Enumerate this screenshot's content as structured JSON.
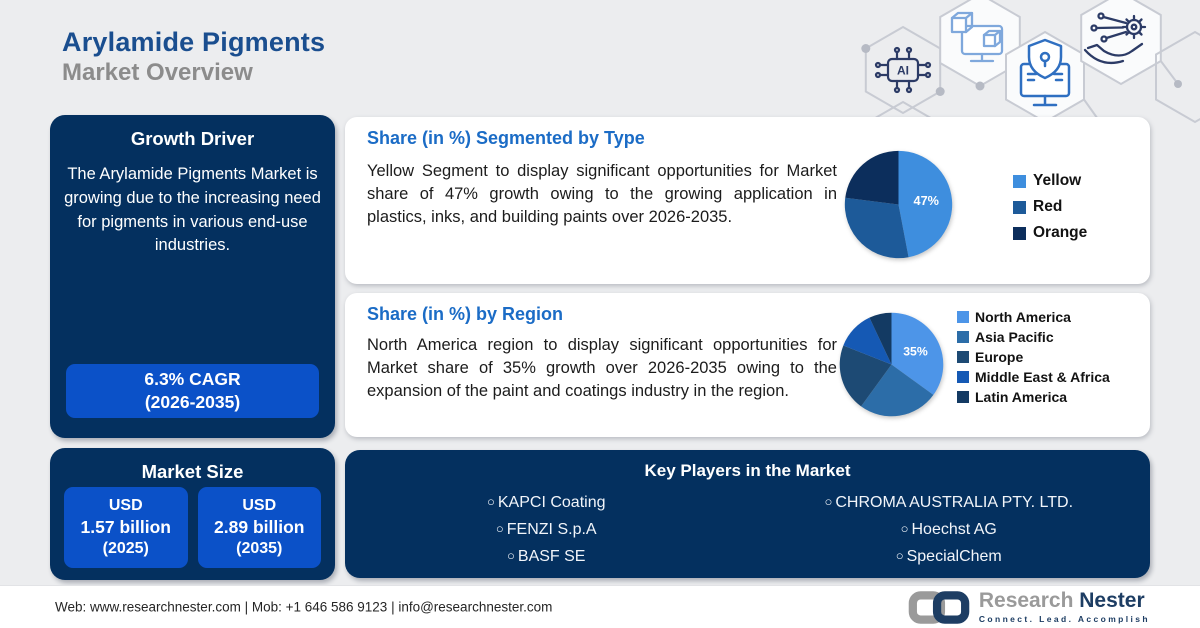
{
  "header": {
    "title": "Arylamide Pigments",
    "subtitle": "Market Overview"
  },
  "growth_driver": {
    "title": "Growth Driver",
    "text": "The Arylamide Pigments Market is growing due to the increasing need for pigments in various end-use industries.",
    "cagr_line1": "6.3% CAGR",
    "cagr_line2": "(2026-2035)"
  },
  "market_size": {
    "title": "Market Size",
    "boxes": [
      {
        "line1": "USD",
        "line2": "1.57 billion",
        "line3": "(2025)"
      },
      {
        "line1": "USD",
        "line2": "2.89 billion",
        "line3": "(2035)"
      }
    ]
  },
  "type_card": {
    "title": "Share (in %) Segmented by Type",
    "body": "Yellow Segment to display significant opportunities for Market share of 47% growth owing to the growing application in plastics, inks, and building paints over 2026-2035."
  },
  "region_card": {
    "title": "Share (in %) by Region",
    "body": "North America region to display significant opportunities for Market share of 35% growth over 2026-2035 owing to the expansion of the paint and coatings industry in the region."
  },
  "key_players": {
    "title": "Key Players in the Market",
    "column1": [
      "KAPCI Coating",
      "FENZI S.p.A",
      "BASF SE"
    ],
    "column2": [
      "CHROMA AUSTRALIA PTY. LTD.",
      "Hoechst AG",
      "SpecialChem"
    ]
  },
  "footer": {
    "contact": "Web: www.researchnester.com | Mob: +1 646 586 9123 | info@researchnester.com",
    "logo_word1": "Research",
    "logo_word2": "Nester",
    "logo_tagline": "Connect. Lead. Accomplish"
  },
  "icons": {
    "ai_chip_label": "AI"
  },
  "colors": {
    "panel_navy": "#04305F",
    "accent_blue": "#0B51C8",
    "card_title_blue": "#1B6CC6",
    "title_navy": "#1A4E8F",
    "subtitle_gray": "#8C8C8C",
    "background": "#ECEDEF"
  },
  "chart_data": [
    {
      "type": "pie",
      "title": "Share (in %) Segmented by Type",
      "labels": [
        "Yellow",
        "Red",
        "Orange"
      ],
      "values": [
        47,
        30,
        23
      ],
      "colors": [
        "#3E8EDE",
        "#1D5A99",
        "#0C2E5C"
      ],
      "data_label": "47%",
      "data_label_slice": 0,
      "legend_position": "right",
      "start_angle_deg_from_top": 0,
      "direction": "clockwise"
    },
    {
      "type": "pie",
      "title": "Share (in %) by Region",
      "labels": [
        "North America",
        "Asia Pacific",
        "Europe",
        "Middle East & Africa",
        "Latin America"
      ],
      "values": [
        35,
        25,
        21,
        12,
        7
      ],
      "colors": [
        "#4D95E8",
        "#2C6DA8",
        "#1D4A74",
        "#1559B4",
        "#133A63"
      ],
      "data_label": "35%",
      "data_label_slice": 0,
      "legend_position": "right",
      "start_angle_deg_from_top": 0,
      "direction": "clockwise"
    }
  ]
}
